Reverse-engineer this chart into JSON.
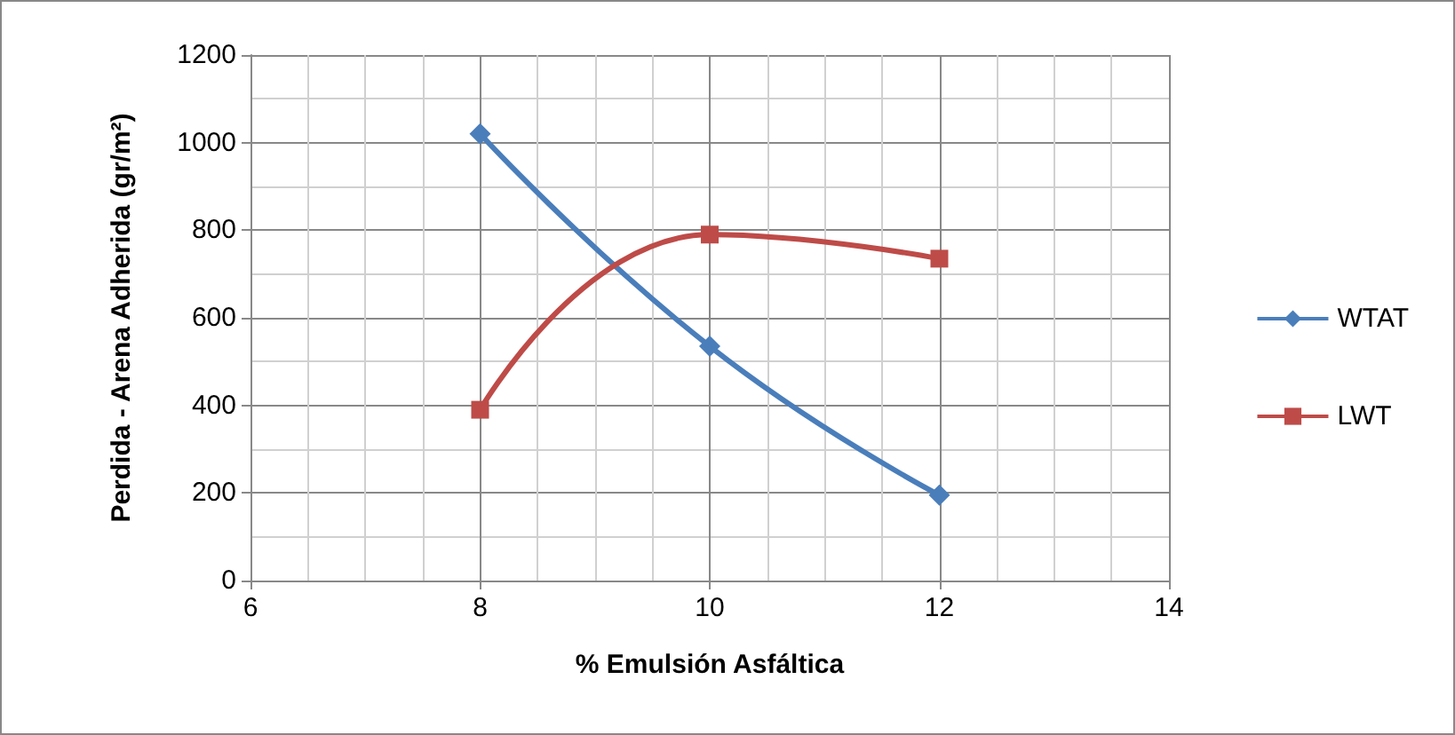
{
  "chart_data": {
    "type": "line",
    "xlabel": "% Emulsión Asfáltica",
    "ylabel": "Perdida - Arena Adherida (gr/m²)",
    "x": [
      8,
      10,
      12
    ],
    "series": [
      {
        "name": "WTAT",
        "color": "#4a7ebb",
        "values": [
          1020,
          535,
          195
        ],
        "marker": "diamond"
      },
      {
        "name": "LWT",
        "color": "#be4b48",
        "values": [
          390,
          790,
          735
        ],
        "marker": "square"
      }
    ],
    "xlim": [
      6,
      14
    ],
    "xticks": [
      6,
      8,
      10,
      12,
      14
    ],
    "ylim": [
      0,
      1200
    ],
    "yticks": [
      0,
      200,
      400,
      600,
      800,
      1000,
      1200
    ],
    "grid": true,
    "legend": "right",
    "line_style": "solid"
  }
}
